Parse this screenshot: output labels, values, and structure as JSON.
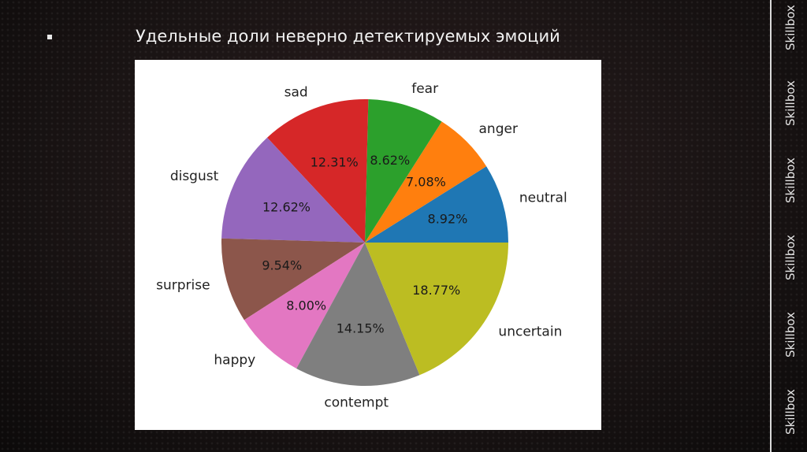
{
  "slide": {
    "title": "Удельные доли неверно детектируемых эмоций"
  },
  "brand": {
    "items": [
      "Skillbox",
      "Skillbox",
      "Skillbox",
      "Skillbox",
      "Skillbox",
      "Skillbox"
    ]
  },
  "chart_data": {
    "type": "pie",
    "title": "",
    "start_angle_deg": 0,
    "direction": "counterclockwise",
    "slices": [
      {
        "label": "neutral",
        "value": 8.92,
        "pct_label": "8.92%",
        "color": "#1f77b4"
      },
      {
        "label": "anger",
        "value": 7.08,
        "pct_label": "7.08%",
        "color": "#ff7f0e"
      },
      {
        "label": "fear",
        "value": 8.62,
        "pct_label": "8.62%",
        "color": "#2ca02c"
      },
      {
        "label": "sad",
        "value": 12.31,
        "pct_label": "12.31%",
        "color": "#d62728"
      },
      {
        "label": "disgust",
        "value": 12.62,
        "pct_label": "12.62%",
        "color": "#9467bd"
      },
      {
        "label": "surprise",
        "value": 9.54,
        "pct_label": "9.54%",
        "color": "#8c564b"
      },
      {
        "label": "happy",
        "value": 8.0,
        "pct_label": "8.00%",
        "color": "#e377c2"
      },
      {
        "label": "contempt",
        "value": 14.15,
        "pct_label": "14.15%",
        "color": "#7f7f7f"
      },
      {
        "label": "uncertain",
        "value": 18.77,
        "pct_label": "18.77%",
        "color": "#bcbd22"
      }
    ]
  }
}
